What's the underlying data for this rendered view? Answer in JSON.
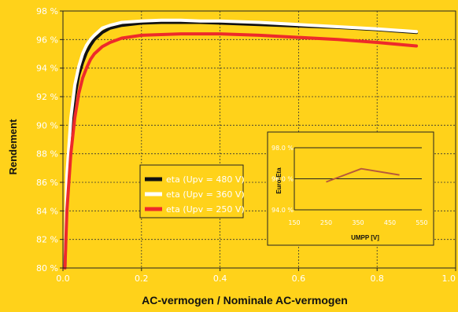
{
  "chart_data": [
    {
      "type": "line",
      "title": "",
      "xlabel": "AC-vermogen / Nominale AC-vermogen",
      "ylabel": "Rendement",
      "xlim": [
        0.0,
        1.0
      ],
      "ylim": [
        80,
        98
      ],
      "x_ticks": [
        0.0,
        0.2,
        0.4,
        0.6,
        0.8,
        1.0
      ],
      "x_tick_labels": [
        "0.0",
        "0.2",
        "0.4",
        "0.6",
        "0.8",
        "1.0"
      ],
      "y_ticks": [
        80,
        82,
        84,
        86,
        88,
        90,
        92,
        94,
        96,
        98
      ],
      "y_tick_labels": [
        "80 %",
        "82 %",
        "84 %",
        "86 %",
        "88 %",
        "90 %",
        "92 %",
        "94 %",
        "96 %",
        "98 %"
      ],
      "grid": "dashed",
      "legend_position": "center-left",
      "series": [
        {
          "name": "eta (Upv = 480 V)",
          "color": "#111111",
          "x": [
            0.005,
            0.01,
            0.02,
            0.03,
            0.04,
            0.05,
            0.06,
            0.07,
            0.08,
            0.1,
            0.12,
            0.15,
            0.2,
            0.25,
            0.3,
            0.35,
            0.4,
            0.5,
            0.6,
            0.7,
            0.8,
            0.9
          ],
          "y": [
            80,
            85.5,
            89.5,
            92.0,
            93.5,
            94.4,
            95.1,
            95.6,
            96.0,
            96.5,
            96.8,
            97.0,
            97.15,
            97.2,
            97.2,
            97.2,
            97.15,
            97.05,
            96.95,
            96.85,
            96.7,
            96.5
          ]
        },
        {
          "name": "eta (Upv = 360 V)",
          "color": "#FFFFFF",
          "x": [
            0.005,
            0.01,
            0.02,
            0.03,
            0.04,
            0.05,
            0.06,
            0.07,
            0.08,
            0.1,
            0.12,
            0.15,
            0.2,
            0.25,
            0.3,
            0.35,
            0.4,
            0.5,
            0.6,
            0.7,
            0.8,
            0.9
          ],
          "y": [
            80,
            86.5,
            90.5,
            92.8,
            94.1,
            95.0,
            95.6,
            96.0,
            96.3,
            96.8,
            97.0,
            97.2,
            97.3,
            97.35,
            97.35,
            97.3,
            97.3,
            97.2,
            97.05,
            96.9,
            96.75,
            96.55
          ]
        },
        {
          "name": "eta (Upv = 250 V)",
          "color": "#EE2A2A",
          "x": [
            0.005,
            0.01,
            0.02,
            0.03,
            0.04,
            0.05,
            0.06,
            0.07,
            0.08,
            0.1,
            0.12,
            0.15,
            0.2,
            0.25,
            0.3,
            0.35,
            0.4,
            0.5,
            0.6,
            0.7,
            0.8,
            0.9
          ],
          "y": [
            80,
            84.0,
            88.0,
            90.5,
            92.2,
            93.3,
            94.0,
            94.6,
            95.0,
            95.5,
            95.8,
            96.1,
            96.3,
            96.35,
            96.4,
            96.4,
            96.4,
            96.3,
            96.15,
            96.0,
            95.8,
            95.55
          ]
        }
      ]
    },
    {
      "type": "line",
      "title": "",
      "xlabel": "UMPP [V]",
      "ylabel": "Euro-Eta",
      "xlim": [
        150,
        550
      ],
      "ylim": [
        94,
        98
      ],
      "x_ticks": [
        150,
        250,
        350,
        450,
        550
      ],
      "x_tick_labels": [
        "150",
        "250",
        "350",
        "450",
        "550"
      ],
      "y_ticks": [
        94,
        96,
        98
      ],
      "y_tick_labels": [
        "94.0 %",
        "96.0 %",
        "98.0 %"
      ],
      "grid": true,
      "series": [
        {
          "color": "#B85A3A",
          "x": [
            250,
            360,
            480
          ],
          "y": [
            95.8,
            96.65,
            96.25
          ]
        }
      ]
    }
  ]
}
